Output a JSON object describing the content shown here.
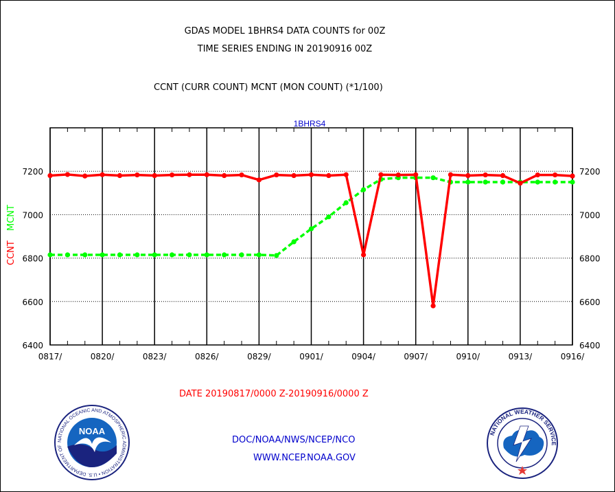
{
  "title": "GDAS MODEL 1BHRS4 DATA COUNTS for 00Z",
  "subtitle": "TIME SERIES ENDING IN 20190916 00Z",
  "heading": "CCNT (CURR COUNT) MCNT (MON COUNT) (*1/100)",
  "colors": {
    "ccnt": "#ff0000",
    "mcnt": "#00ff00",
    "blue": "#0000cc",
    "grid": "#000000"
  },
  "chart_data": {
    "type": "line",
    "title": "1BHRS4",
    "xlabel": "DATE 20190817/0000 Z-20190916/0000 Z",
    "ylabel_series": [
      "CCNT",
      "MCNT"
    ],
    "ylim": [
      6400,
      7400
    ],
    "xlim": [
      0,
      30
    ],
    "yticks": [
      6400,
      6600,
      6800,
      7000,
      7200
    ],
    "xticks": [
      {
        "i": 0,
        "label": "0817/"
      },
      {
        "i": 3,
        "label": "0820/"
      },
      {
        "i": 6,
        "label": "0823/"
      },
      {
        "i": 9,
        "label": "0826/"
      },
      {
        "i": 12,
        "label": "0829/"
      },
      {
        "i": 15,
        "label": "0901/"
      },
      {
        "i": 18,
        "label": "0904/"
      },
      {
        "i": 21,
        "label": "0907/"
      },
      {
        "i": 24,
        "label": "0910/"
      },
      {
        "i": 27,
        "label": "0913/"
      },
      {
        "i": 30,
        "label": "0916/"
      }
    ],
    "grid": true,
    "series": [
      {
        "name": "CCNT",
        "color": "#ff0000",
        "style": "solid",
        "values": [
          7180,
          7185,
          7178,
          7184,
          7180,
          7183,
          7180,
          7183,
          7184,
          7184,
          7180,
          7183,
          7160,
          7183,
          7180,
          7184,
          7180,
          7184,
          6815,
          7184,
          7183,
          7184,
          6580,
          7184,
          7180,
          7183,
          7180,
          7145,
          7183,
          7183,
          7178
        ]
      },
      {
        "name": "MCNT",
        "color": "#00ff00",
        "style": "dashed",
        "values": [
          6815,
          6815,
          6815,
          6815,
          6815,
          6815,
          6815,
          6815,
          6815,
          6815,
          6815,
          6815,
          6815,
          6812,
          6875,
          6935,
          6990,
          7055,
          7115,
          7163,
          7170,
          7170,
          7170,
          7150,
          7150,
          7150,
          7150,
          7150,
          7150,
          7150,
          7150
        ]
      }
    ]
  },
  "footer": {
    "org": "DOC/NOAA/NWS/NCEP/NCO",
    "url": "WWW.NCEP.NOAA.GOV",
    "noaa_logo_text": "NOAA",
    "noaa_ring_text": "NATIONAL OCEANIC AND ATMOSPHERIC ADMINISTRATION • U.S. DEPARTMENT OF COMMERCE",
    "nws_ring_text": "NATIONAL WEATHER SERVICE"
  }
}
